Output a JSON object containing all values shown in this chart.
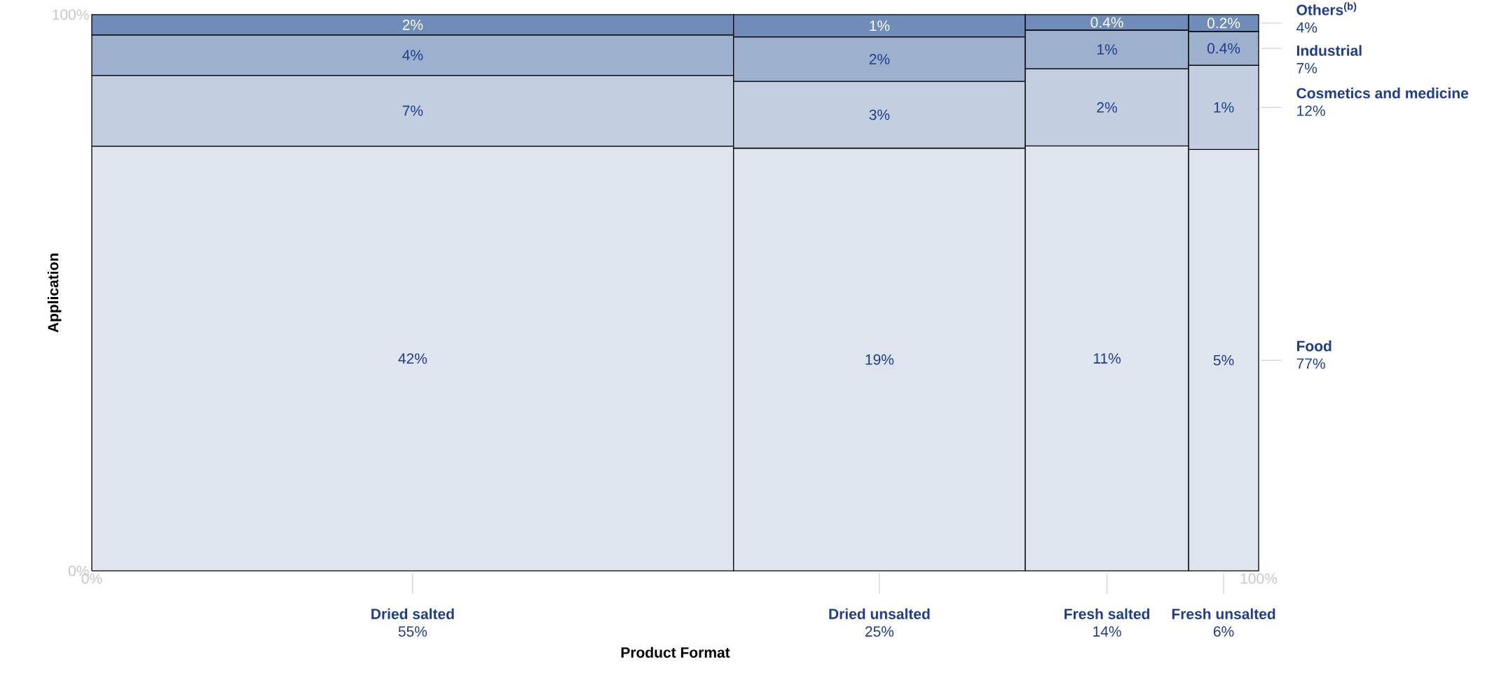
{
  "chart_data": {
    "type": "other",
    "xlabel": "Product Format",
    "ylabel": "Application",
    "categories": [
      "Dried salted",
      "Dried unsalted",
      "Fresh salted",
      "Fresh unsalted"
    ],
    "totals": [
      "55%",
      "25%",
      "14%",
      "6%"
    ],
    "series": [
      {
        "name": "Food",
        "color": "#dfe5ef",
        "values": [
          42,
          19,
          11,
          5
        ],
        "value_labels": [
          "42%",
          "19%",
          "11%",
          "5%"
        ]
      },
      {
        "name": "Cosmetics and medicine",
        "color": "#c3cfe1",
        "values": [
          7,
          3,
          2,
          1
        ],
        "value_labels": [
          "7%",
          "3%",
          "2%",
          "1%"
        ]
      },
      {
        "name": "Industrial",
        "color": "#9db0ce",
        "values": [
          4,
          2,
          1,
          0.4
        ],
        "value_labels": [
          "4%",
          "2%",
          "1%",
          "0.4%"
        ]
      },
      {
        "name": "Others$^{(b)}$",
        "color": "#6f8db8",
        "values": [
          2,
          1,
          0.4,
          0.2
        ],
        "value_labels": [
          "2%",
          "1%",
          "0.4%",
          "0.2%"
        ]
      }
    ],
    "annotations": [
      "77%",
      "12%",
      "7%",
      "4%",
      "0%",
      "100%",
      "0%",
      "100%"
    ]
  }
}
